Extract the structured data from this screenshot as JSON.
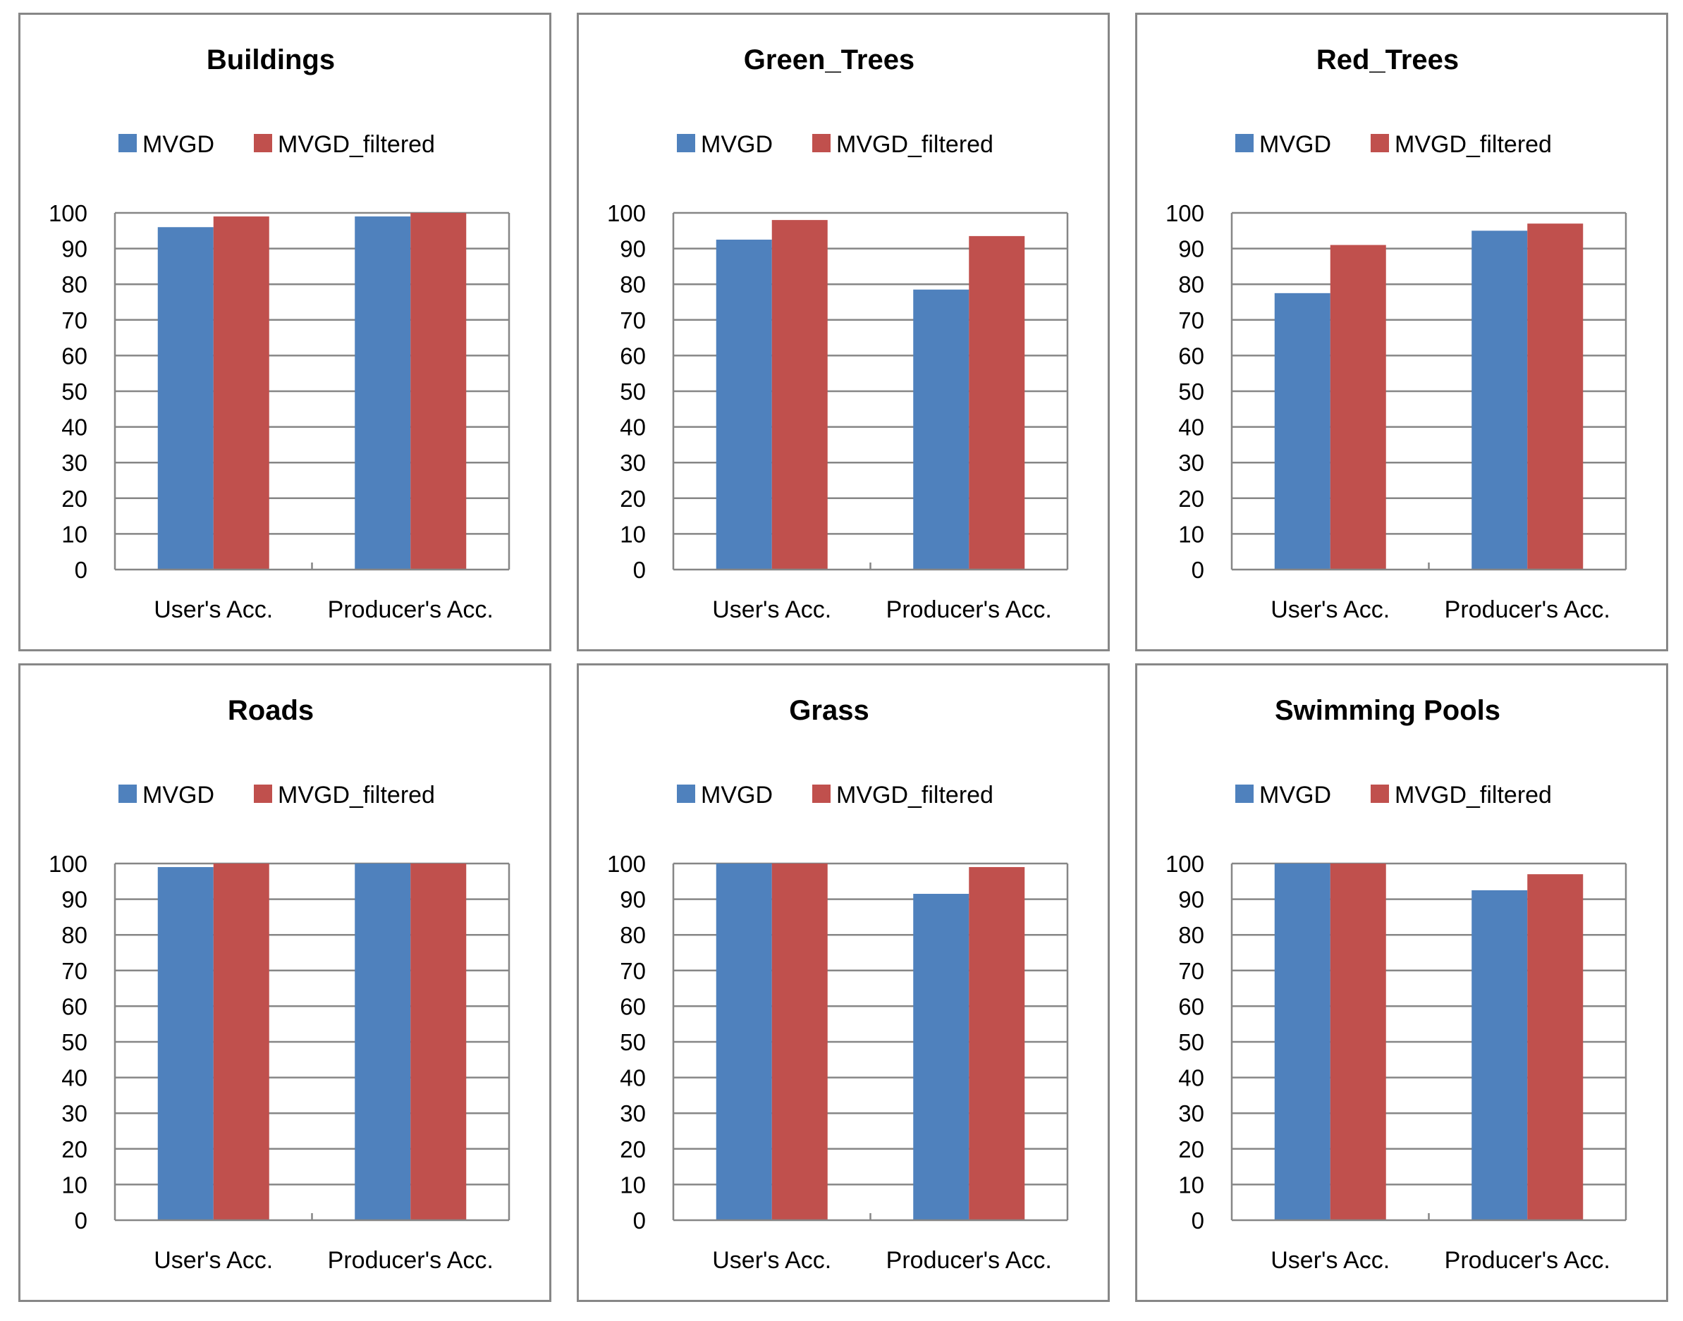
{
  "chart_data": [
    {
      "type": "bar",
      "title": "Buildings",
      "categories": [
        "User's Acc.",
        "Producer's Acc."
      ],
      "series": [
        {
          "name": "MVGD",
          "values": [
            96,
            99
          ]
        },
        {
          "name": "MVGD_filtered",
          "values": [
            99,
            100
          ]
        }
      ],
      "ylim": [
        0,
        100
      ],
      "yticks": [
        "0",
        "10",
        "20",
        "30",
        "40",
        "50",
        "60",
        "70",
        "80",
        "90",
        "100"
      ],
      "grid": true,
      "legend": "top-center"
    },
    {
      "type": "bar",
      "title": "Green_Trees",
      "categories": [
        "User's Acc.",
        "Producer's Acc."
      ],
      "series": [
        {
          "name": "MVGD",
          "values": [
            92.5,
            78.5
          ]
        },
        {
          "name": "MVGD_filtered",
          "values": [
            98,
            93.5
          ]
        }
      ],
      "ylim": [
        0,
        100
      ],
      "yticks": [
        "0",
        "10",
        "20",
        "30",
        "40",
        "50",
        "60",
        "70",
        "80",
        "90",
        "100"
      ],
      "grid": true,
      "legend": "top-center"
    },
    {
      "type": "bar",
      "title": "Red_Trees",
      "categories": [
        "User's Acc.",
        "Producer's Acc."
      ],
      "series": [
        {
          "name": "MVGD",
          "values": [
            77.5,
            95
          ]
        },
        {
          "name": "MVGD_filtered",
          "values": [
            91,
            97
          ]
        }
      ],
      "ylim": [
        0,
        100
      ],
      "yticks": [
        "0",
        "10",
        "20",
        "30",
        "40",
        "50",
        "60",
        "70",
        "80",
        "90",
        "100"
      ],
      "grid": true,
      "legend": "top-center"
    },
    {
      "type": "bar",
      "title": "Roads",
      "categories": [
        "User's Acc.",
        "Producer's Acc."
      ],
      "series": [
        {
          "name": "MVGD",
          "values": [
            99,
            100
          ]
        },
        {
          "name": "MVGD_filtered",
          "values": [
            100,
            100
          ]
        }
      ],
      "ylim": [
        0,
        100
      ],
      "yticks": [
        "0",
        "10",
        "20",
        "30",
        "40",
        "50",
        "60",
        "70",
        "80",
        "90",
        "100"
      ],
      "grid": true,
      "legend": "top-center"
    },
    {
      "type": "bar",
      "title": "Grass",
      "categories": [
        "User's Acc.",
        "Producer's Acc."
      ],
      "series": [
        {
          "name": "MVGD",
          "values": [
            100,
            91.5
          ]
        },
        {
          "name": "MVGD_filtered",
          "values": [
            100,
            99
          ]
        }
      ],
      "ylim": [
        0,
        100
      ],
      "yticks": [
        "0",
        "10",
        "20",
        "30",
        "40",
        "50",
        "60",
        "70",
        "80",
        "90",
        "100"
      ],
      "grid": true,
      "legend": "top-center"
    },
    {
      "type": "bar",
      "title": "Swimming Pools",
      "categories": [
        "User's Acc.",
        "Producer's Acc."
      ],
      "series": [
        {
          "name": "MVGD",
          "values": [
            100,
            92.5
          ]
        },
        {
          "name": "MVGD_filtered",
          "values": [
            100,
            97
          ]
        }
      ],
      "ylim": [
        0,
        100
      ],
      "yticks": [
        "0",
        "10",
        "20",
        "30",
        "40",
        "50",
        "60",
        "70",
        "80",
        "90",
        "100"
      ],
      "grid": true,
      "legend": "top-center"
    }
  ],
  "colors": {
    "series": [
      "#4F81BD",
      "#C0504D"
    ],
    "grid": "#868686",
    "panel_border": "#878787"
  }
}
